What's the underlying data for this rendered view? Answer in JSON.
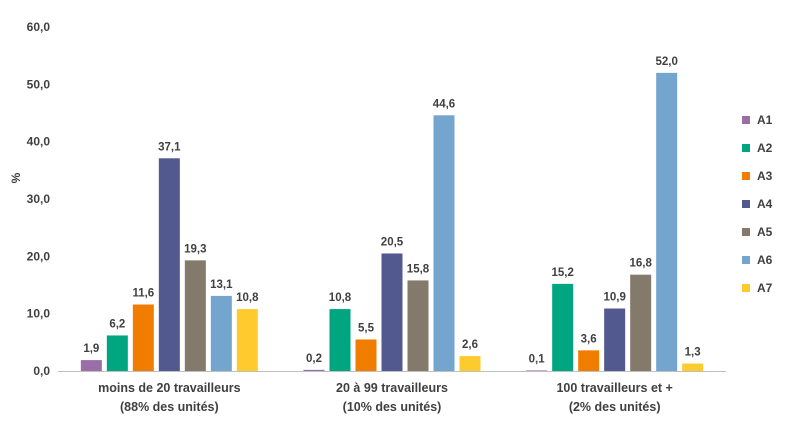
{
  "chart_data": {
    "type": "bar",
    "title": "",
    "xlabel": "",
    "ylabel": "%",
    "ylim": [
      0,
      60
    ],
    "yticks": [
      "0,0",
      "10,0",
      "20,0",
      "30,0",
      "40,0",
      "50,0",
      "60,0"
    ],
    "grid": false,
    "legend_position": "right",
    "categories": [
      [
        "moins de 20 travailleurs",
        "(88% des unités)"
      ],
      [
        "20 à 99 travailleurs",
        "(10% des unités)"
      ],
      [
        "100 travailleurs et +",
        "(2% des unités)"
      ]
    ],
    "series": [
      {
        "name": "A1",
        "color": "#9a6fa8",
        "values": [
          1.9,
          0.2,
          0.1
        ],
        "labels": [
          "1,9",
          "0,2",
          "0,1"
        ]
      },
      {
        "name": "A2",
        "color": "#00a680",
        "values": [
          6.2,
          10.8,
          15.2
        ],
        "labels": [
          "6,2",
          "10,8",
          "15,2"
        ]
      },
      {
        "name": "A3",
        "color": "#f07d00",
        "values": [
          11.6,
          5.5,
          3.6
        ],
        "labels": [
          "11,6",
          "5,5",
          "3,6"
        ]
      },
      {
        "name": "A4",
        "color": "#51598f",
        "values": [
          37.1,
          20.5,
          10.9
        ],
        "labels": [
          "37,1",
          "20,5",
          "10,9"
        ]
      },
      {
        "name": "A5",
        "color": "#847a6b",
        "values": [
          19.3,
          15.8,
          16.8
        ],
        "labels": [
          "19,3",
          "15,8",
          "16,8"
        ]
      },
      {
        "name": "A6",
        "color": "#74a5cf",
        "values": [
          13.1,
          44.6,
          52.0
        ],
        "labels": [
          "13,1",
          "44,6",
          "52,0"
        ]
      },
      {
        "name": "A7",
        "color": "#fecb2e",
        "values": [
          10.8,
          2.6,
          1.3
        ],
        "labels": [
          "10,8",
          "2,6",
          "1,3"
        ]
      }
    ]
  }
}
